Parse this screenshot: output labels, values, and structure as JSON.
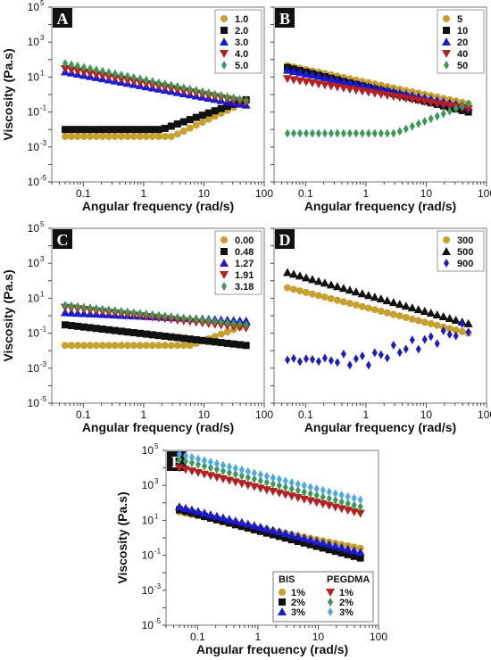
{
  "chart_data": [
    {
      "panel": "A",
      "type": "scatter",
      "xscale": "log",
      "yscale": "log",
      "xlim": [
        0.03,
        100
      ],
      "ylim": [
        1e-05,
        100000
      ],
      "xlabel": "Angular frequency (rad/s)",
      "ylabel": "Viscosity (Pa.s)",
      "x_ticks": [
        "0.1",
        "1",
        "10",
        "100"
      ],
      "y_ticks": [
        {
          "base": "10",
          "exp": "5"
        },
        {
          "base": "10",
          "exp": "3"
        },
        {
          "base": "10",
          "exp": "1"
        },
        {
          "base": "10",
          "exp": "-1"
        },
        {
          "base": "10",
          "exp": "-3"
        },
        {
          "base": "10",
          "exp": "-5"
        }
      ],
      "legend_position": "top-right",
      "series": [
        {
          "name": "1.0",
          "marker": "circle",
          "color": "#c8a030",
          "profile": {
            "kind": "flat_rise",
            "low": 0.004,
            "bend": 3,
            "end": 0.4
          }
        },
        {
          "name": "2.0",
          "marker": "square",
          "color": "#111111",
          "profile": {
            "kind": "flat_rise",
            "low": 0.01,
            "bend": 2,
            "end": 0.5
          }
        },
        {
          "name": "3.0",
          "marker": "triangle-up",
          "color": "#1a1ad0",
          "profile": {
            "kind": "power",
            "start": 20,
            "end": 0.25
          }
        },
        {
          "name": "4.0",
          "marker": "triangle-down",
          "color": "#b52020",
          "profile": {
            "kind": "power",
            "start": 30,
            "end": 0.35
          }
        },
        {
          "name": "5.0",
          "marker": "diamond",
          "color": "#3a9a55",
          "profile": {
            "kind": "power",
            "start": 60,
            "end": 0.45
          }
        }
      ]
    },
    {
      "panel": "B",
      "type": "scatter",
      "xscale": "log",
      "yscale": "log",
      "xlim": [
        0.03,
        100
      ],
      "ylim": [
        1e-05,
        100000
      ],
      "xlabel": "Angular frequency (rad/s)",
      "ylabel": "",
      "x_ticks": [
        "0.1",
        "1",
        "10",
        "100"
      ],
      "y_ticks": [],
      "legend_position": "top-right",
      "series": [
        {
          "name": "5",
          "marker": "circle",
          "color": "#c8a030",
          "profile": {
            "kind": "power",
            "start": 45,
            "end": 0.3
          }
        },
        {
          "name": "10",
          "marker": "square",
          "color": "#111111",
          "profile": {
            "kind": "power",
            "start": 35,
            "end": 0.1
          }
        },
        {
          "name": "20",
          "marker": "triangle-up",
          "color": "#1a1ad0",
          "profile": {
            "kind": "power",
            "start": 25,
            "end": 0.2
          }
        },
        {
          "name": "40",
          "marker": "triangle-down",
          "color": "#b52020",
          "profile": {
            "kind": "power",
            "start": 8,
            "end": 0.15
          }
        },
        {
          "name": "50",
          "marker": "diamond",
          "color": "#3a9a55",
          "profile": {
            "kind": "flat_rise",
            "low": 0.006,
            "bend": 3,
            "end": 0.3
          }
        }
      ]
    },
    {
      "panel": "C",
      "type": "scatter",
      "xscale": "log",
      "yscale": "log",
      "xlim": [
        0.03,
        100
      ],
      "ylim": [
        1e-05,
        100000
      ],
      "xlabel": "Angular frequency (rad/s)",
      "ylabel": "Viscosity (Pa.s)",
      "x_ticks": [
        "0.1",
        "1",
        "10",
        "100"
      ],
      "y_ticks": [
        {
          "base": "10",
          "exp": "5"
        },
        {
          "base": "10",
          "exp": "3"
        },
        {
          "base": "10",
          "exp": "1"
        },
        {
          "base": "10",
          "exp": "-1"
        },
        {
          "base": "10",
          "exp": "-3"
        },
        {
          "base": "10",
          "exp": "-5"
        }
      ],
      "legend_position": "top-right",
      "series": [
        {
          "name": "0.00",
          "marker": "circle",
          "color": "#c8a030",
          "profile": {
            "kind": "flat_rise",
            "low": 0.02,
            "bend": 6,
            "end": 0.3
          }
        },
        {
          "name": "0.48",
          "marker": "square",
          "color": "#111111",
          "profile": {
            "kind": "power",
            "start": 0.3,
            "end": 0.02
          }
        },
        {
          "name": "1.27",
          "marker": "triangle-up",
          "color": "#1a1ad0",
          "profile": {
            "kind": "power",
            "start": 1.5,
            "end": 0.5
          }
        },
        {
          "name": "1.91",
          "marker": "triangle-down",
          "color": "#b52020",
          "profile": {
            "kind": "power",
            "start": 3,
            "end": 0.2
          }
        },
        {
          "name": "3.18",
          "marker": "diamond",
          "color": "#3a9a55",
          "profile": {
            "kind": "power",
            "start": 4,
            "end": 0.3
          }
        }
      ]
    },
    {
      "panel": "D",
      "type": "scatter",
      "xscale": "log",
      "yscale": "log",
      "xlim": [
        0.03,
        100
      ],
      "ylim": [
        1e-05,
        100000
      ],
      "xlabel": "Angular frequency (rad/s)",
      "ylabel": "",
      "x_ticks": [
        "0.1",
        "1",
        "10",
        "100"
      ],
      "y_ticks": [],
      "legend_position": "top-right",
      "series": [
        {
          "name": "300",
          "marker": "circle",
          "color": "#c8a030",
          "profile": {
            "kind": "power",
            "start": 40,
            "end": 0.1
          }
        },
        {
          "name": "500",
          "marker": "triangle-up",
          "color": "#111111",
          "profile": {
            "kind": "power",
            "start": 300,
            "end": 0.35
          }
        },
        {
          "name": "900",
          "marker": "diamond",
          "color": "#1a1ad0",
          "profile": {
            "kind": "noisy_rise",
            "low": 0.003,
            "bend": 1,
            "end": 0.2
          }
        }
      ]
    },
    {
      "panel": "E",
      "type": "scatter",
      "xscale": "log",
      "yscale": "log",
      "xlim": [
        0.03,
        100
      ],
      "ylim": [
        1e-05,
        100000
      ],
      "xlabel": "Angular frequency (rad/s)",
      "ylabel": "Viscosity (Pa.s)",
      "x_ticks": [
        "0.1",
        "1",
        "10",
        "100"
      ],
      "y_ticks": [
        {
          "base": "10",
          "exp": "5"
        },
        {
          "base": "10",
          "exp": "3"
        },
        {
          "base": "10",
          "exp": "1"
        },
        {
          "base": "10",
          "exp": "-1"
        },
        {
          "base": "10",
          "exp": "-3"
        },
        {
          "base": "10",
          "exp": "-5"
        }
      ],
      "legend_position": "bottom-right",
      "legend_groups": [
        "BIS",
        "PEGDMA"
      ],
      "series": [
        {
          "name": "1%",
          "group": "BIS",
          "marker": "circle",
          "color": "#c8a030",
          "profile": {
            "kind": "power",
            "start": 30,
            "end": 0.25
          }
        },
        {
          "name": "2%",
          "group": "BIS",
          "marker": "square",
          "color": "#111111",
          "profile": {
            "kind": "power",
            "start": 40,
            "end": 0.07
          }
        },
        {
          "name": "3%",
          "group": "BIS",
          "marker": "triangle-up",
          "color": "#1a1ad0",
          "profile": {
            "kind": "power",
            "start": 60,
            "end": 0.15
          }
        },
        {
          "name": "1%",
          "group": "PEGDMA",
          "marker": "triangle-down",
          "color": "#b52020",
          "profile": {
            "kind": "power",
            "start": 10000,
            "end": 25
          }
        },
        {
          "name": "2%",
          "group": "PEGDMA",
          "marker": "diamond",
          "color": "#3a9a55",
          "profile": {
            "kind": "power",
            "start": 30000,
            "end": 60
          }
        },
        {
          "name": "3%",
          "group": "PEGDMA",
          "marker": "diamond",
          "color": "#4aa8e8",
          "profile": {
            "kind": "power",
            "start": 60000,
            "end": 150
          }
        }
      ]
    }
  ]
}
